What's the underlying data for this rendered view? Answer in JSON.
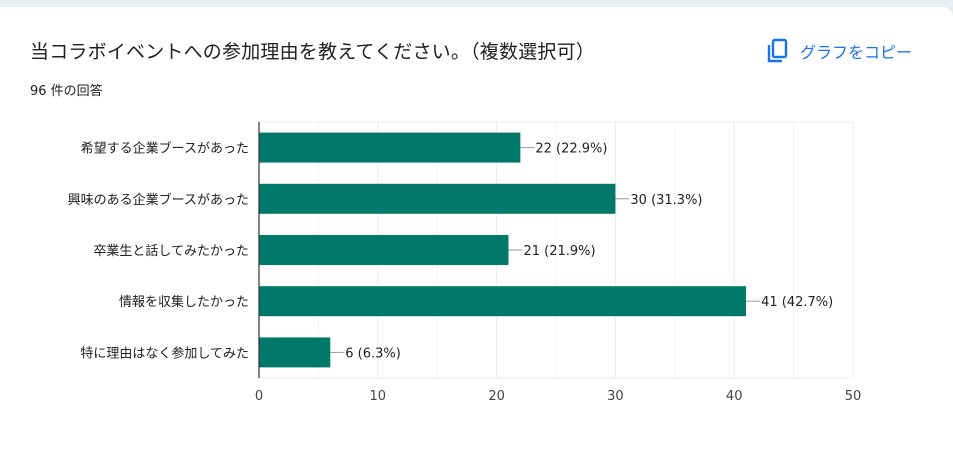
{
  "header": {
    "title": "当コラボイベントへの参加理由を教えてください。（複数選択可）",
    "response_count": "96 件の回答",
    "copy_button_label": "グラフをコピー",
    "copy_icon": "copy-icon"
  },
  "colors": {
    "bar": "#00796b",
    "accent": "#1a73e8",
    "text": "#202124",
    "grid": "#ebebeb",
    "axis": "#333333"
  },
  "chart_data": {
    "type": "bar",
    "orientation": "horizontal",
    "categories": [
      "希望する企業ブースがあった",
      "興味のある企業ブースがあった",
      "卒業生と話してみたかった",
      "情報を収集したかった",
      "特に理由はなく参加してみた"
    ],
    "values": [
      22,
      30,
      21,
      41,
      6
    ],
    "data_labels": [
      "22 (22.9%)",
      "30 (31.3%)",
      "21 (21.9%)",
      "41 (42.7%)",
      "6 (6.3%)"
    ],
    "xlim": [
      0,
      50
    ],
    "xticks": [
      0,
      10,
      20,
      30,
      40,
      50
    ],
    "grid": true,
    "legend": "none"
  }
}
